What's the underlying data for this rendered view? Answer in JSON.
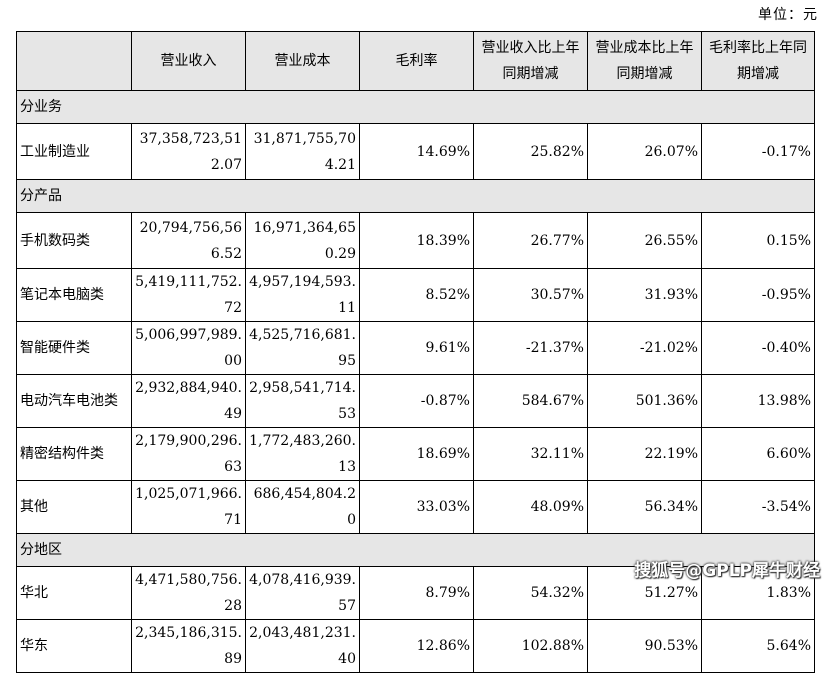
{
  "unit_label": "单位：元",
  "headers": [
    "",
    "营业收入",
    "营业成本",
    "毛利率",
    "营业收入比上年同期增减",
    "营业成本比上年同期增减",
    "毛利率比上年同期增减"
  ],
  "sections": [
    {
      "title": "分业务",
      "rows": [
        {
          "name": "工业制造业",
          "revenue": "37,358,723,512.07",
          "cost": "31,871,755,704.21",
          "margin": "14.69%",
          "rev_change": "25.82%",
          "cost_change": "26.07%",
          "margin_change": "-0.17%",
          "tall": true
        }
      ]
    },
    {
      "title": "分产品",
      "rows": [
        {
          "name": "手机数码类",
          "revenue": "20,794,756,566.52",
          "cost": "16,971,364,650.29",
          "margin": "18.39%",
          "rev_change": "26.77%",
          "cost_change": "26.55%",
          "margin_change": "0.15%",
          "tall": true
        },
        {
          "name": "笔记本电脑类",
          "revenue": "5,419,111,752.72",
          "cost": "4,957,194,593.11",
          "margin": "8.52%",
          "rev_change": "30.57%",
          "cost_change": "31.93%",
          "margin_change": "-0.95%"
        },
        {
          "name": "智能硬件类",
          "revenue": "5,006,997,989.00",
          "cost": "4,525,716,681.95",
          "margin": "9.61%",
          "rev_change": "-21.37%",
          "cost_change": "-21.02%",
          "margin_change": "-0.40%"
        },
        {
          "name": "电动汽车电池类",
          "revenue": "2,932,884,940.49",
          "cost": "2,958,541,714.53",
          "margin": "-0.87%",
          "rev_change": "584.67%",
          "cost_change": "501.36%",
          "margin_change": "13.98%"
        },
        {
          "name": "精密结构件类",
          "revenue": "2,179,900,296.63",
          "cost": "1,772,483,260.13",
          "margin": "18.69%",
          "rev_change": "32.11%",
          "cost_change": "22.19%",
          "margin_change": "6.60%"
        },
        {
          "name": "其他",
          "revenue": "1,025,071,966.71",
          "cost": "686,454,804.20",
          "margin": "33.03%",
          "rev_change": "48.09%",
          "cost_change": "56.34%",
          "margin_change": "-3.54%"
        }
      ]
    },
    {
      "title": "分地区",
      "rows": [
        {
          "name": "华北",
          "revenue": "4,471,580,756.28",
          "cost": "4,078,416,939.57",
          "margin": "8.79%",
          "rev_change": "54.32%",
          "cost_change": "51.27%",
          "margin_change": "1.83%"
        },
        {
          "name": "华东",
          "revenue": "2,345,186,315.89",
          "cost": "2,043,481,231.40",
          "margin": "12.86%",
          "rev_change": "102.88%",
          "cost_change": "90.53%",
          "margin_change": "5.64%"
        }
      ]
    }
  ],
  "watermark": "搜狐号@GPLP犀牛财经"
}
